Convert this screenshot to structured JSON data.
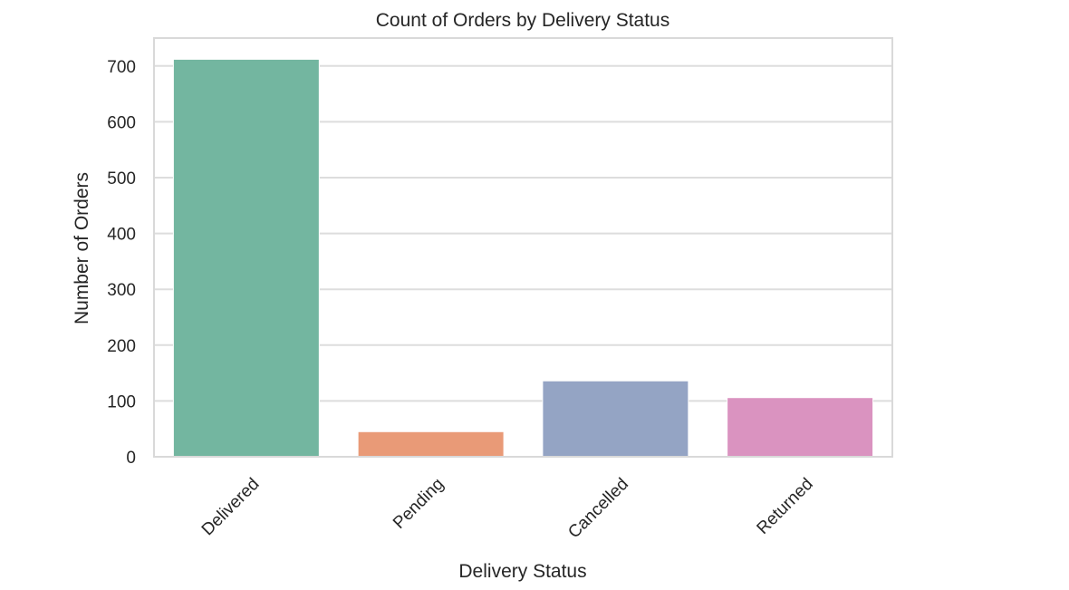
{
  "chart_data": {
    "type": "bar",
    "title": "Count of Orders by Delivery Status",
    "xlabel": "Delivery Status",
    "ylabel": "Number of Orders",
    "categories": [
      "Delivered",
      "Pending",
      "Cancelled",
      "Returned"
    ],
    "values": [
      712,
      45,
      136,
      106
    ],
    "colors": [
      "#73b6a0",
      "#e99a77",
      "#94a4c4",
      "#da93c0"
    ],
    "ylim": [
      0,
      750
    ],
    "yticks": [
      0,
      100,
      200,
      300,
      400,
      500,
      600,
      700
    ],
    "grid": true,
    "xtick_rotation": -45
  }
}
